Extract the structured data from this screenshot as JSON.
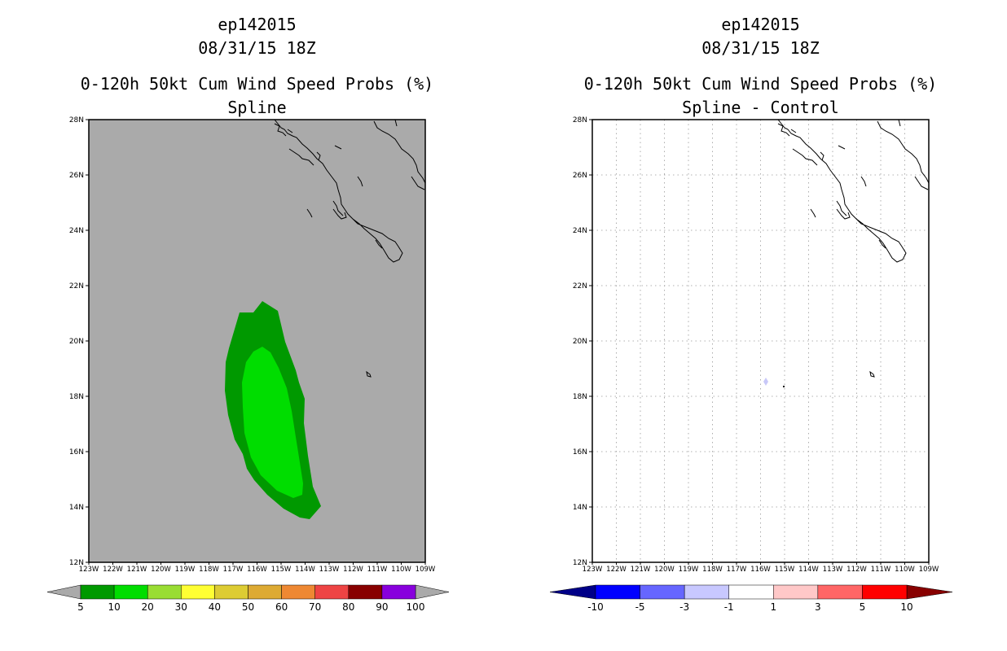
{
  "left_panel": {
    "title_line1": "ep142015",
    "title_line2": "08/31/15 18Z",
    "title_line3": "0-120h 50kt Cum Wind Speed Probs (%)",
    "title_line4": "Spline",
    "background_color": "#aaaaaa",
    "contour_colors": {
      "5-10": "#009900",
      "10-20": "#00dd00"
    }
  },
  "right_panel": {
    "title_line1": "ep142015",
    "title_line2": "08/31/15 18Z",
    "title_line3": "0-120h 50kt Cum Wind Speed Probs (%)",
    "title_line4": "Spline - Control",
    "background_color": "#ffffff",
    "grid": true,
    "difference_marker_color": "#c8c8f8"
  },
  "axes": {
    "lat_labels": [
      "28N",
      "26N",
      "24N",
      "22N",
      "20N",
      "18N",
      "16N",
      "14N",
      "12N"
    ],
    "lon_labels": [
      "123W",
      "122W",
      "121W",
      "120W",
      "119W",
      "118W",
      "117W",
      "116W",
      "115W",
      "114W",
      "113W",
      "112W",
      "111W",
      "110W",
      "109W"
    ]
  },
  "left_colorbar": {
    "labels": [
      "5",
      "10",
      "20",
      "30",
      "40",
      "50",
      "60",
      "70",
      "80",
      "90",
      "100"
    ],
    "colors": [
      "#009900",
      "#00dd00",
      "#99dd33",
      "#ffff33",
      "#ddcc33",
      "#ddaa33",
      "#ee8833",
      "#ee4444",
      "#880000",
      "#8800dd"
    ],
    "end_color": "#aaaaaa"
  },
  "right_colorbar": {
    "labels": [
      "-10",
      "-5",
      "-3",
      "-1",
      "1",
      "3",
      "5",
      "10"
    ],
    "colors": [
      "#0000ff",
      "#6666ff",
      "#c8c8ff",
      "#ffffff",
      "#ffc8c8",
      "#ff6666",
      "#ff0000"
    ],
    "low_end_color": "#000088",
    "high_end_color": "#880000"
  }
}
